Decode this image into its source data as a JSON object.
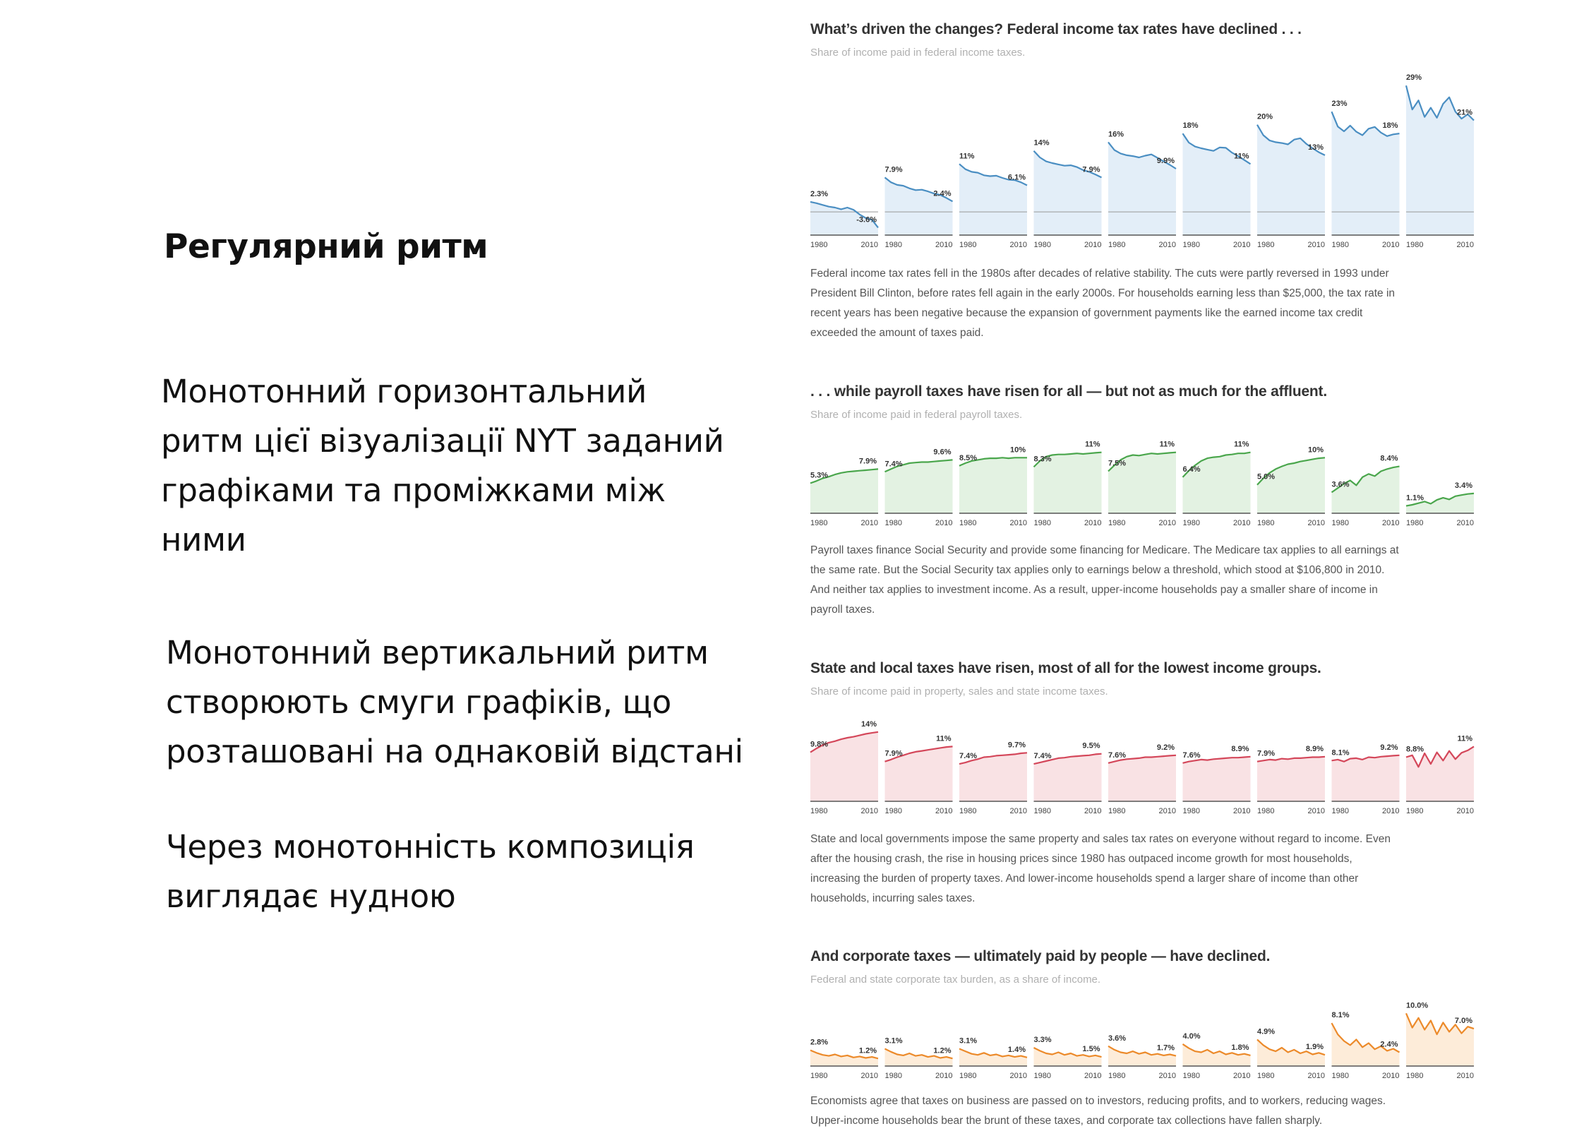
{
  "slide": {
    "heading": "Регулярний ритм",
    "paragraph1": [
      "Монотонний горизонтальний",
      "ритм цієї візуалізації NYT заданий",
      "графіками та проміжками між",
      "ними"
    ],
    "paragraph2": [
      "Монотонний вертикальний ритм",
      "створюють смуги графіків, що",
      "розташовані на однаковій відстані"
    ],
    "paragraph3": [
      "Через монотонність композиція",
      "виглядає нудною"
    ]
  },
  "chart_data": [
    {
      "type": "area",
      "title": "What’s driven the changes? Federal income tax rates have declined . . .",
      "subtitle": "Share of income paid in federal income taxes.",
      "x_tick_labels": [
        "1980",
        "2010"
      ],
      "color": "#4a8ec2",
      "fill": "#e3eef8",
      "ylim": [
        -5,
        30
      ],
      "panels": [
        {
          "start_label": "2.3%",
          "end_label": "-3.6%",
          "values": [
            2.3,
            2.0,
            1.6,
            1.2,
            1.0,
            0.6,
            1.0,
            0.5,
            -0.6,
            -1.4,
            -1.8,
            -3.6
          ]
        },
        {
          "start_label": "7.9%",
          "end_label": "2.4%",
          "values": [
            7.9,
            6.8,
            6.2,
            6.0,
            5.4,
            5.0,
            5.1,
            4.7,
            4.2,
            3.9,
            3.2,
            2.4
          ]
        },
        {
          "start_label": "11%",
          "end_label": "6.1%",
          "values": [
            11.0,
            9.8,
            9.2,
            9.0,
            8.4,
            8.2,
            8.3,
            7.8,
            7.4,
            7.3,
            6.8,
            6.1
          ]
        },
        {
          "start_label": "14%",
          "end_label": "7.9%",
          "values": [
            14.0,
            12.5,
            11.6,
            11.2,
            10.9,
            10.6,
            10.7,
            10.3,
            9.6,
            9.2,
            8.6,
            7.9
          ]
        },
        {
          "start_label": "16%",
          "end_label": "9.9%",
          "values": [
            16.0,
            14.2,
            13.4,
            13.0,
            12.8,
            12.5,
            12.9,
            13.2,
            12.4,
            11.6,
            10.8,
            9.9
          ]
        },
        {
          "start_label": "18%",
          "end_label": "11%",
          "values": [
            18.0,
            15.9,
            15.0,
            14.6,
            14.3,
            14.0,
            14.8,
            14.7,
            13.6,
            12.8,
            11.9,
            11.0
          ]
        },
        {
          "start_label": "20%",
          "end_label": "13%",
          "values": [
            20.0,
            17.6,
            16.4,
            16.0,
            15.8,
            15.5,
            16.6,
            16.9,
            15.6,
            14.6,
            13.7,
            13.0
          ]
        },
        {
          "start_label": "23%",
          "end_label": "18%",
          "values": [
            23.0,
            19.6,
            18.5,
            19.8,
            18.4,
            17.6,
            19.1,
            19.5,
            18.2,
            17.4,
            17.8,
            18.0
          ]
        },
        {
          "start_label": "29%",
          "end_label": "21%",
          "values": [
            29.0,
            23.5,
            25.6,
            21.8,
            23.9,
            21.6,
            24.8,
            26.3,
            23.0,
            21.4,
            22.4,
            21.0
          ]
        }
      ],
      "description": [
        "Federal income tax rates fell in the 1980s after decades of relative stability. The cuts were partly reversed in 1993 under",
        "President Bill Clinton, before rates fell again in the early 2000s. For households earning less than $25,000, the tax rate in",
        "recent years has been negative because the expansion of government payments like the earned income tax credit",
        "exceeded the amount of taxes paid."
      ]
    },
    {
      "type": "area",
      "title": ". . . while payroll taxes have risen for all — but not as much for the affluent.",
      "subtitle": "Share of income paid in federal payroll taxes.",
      "x_tick_labels": [
        "1980",
        "2010"
      ],
      "color": "#4aa64c",
      "fill": "#e3f2e2",
      "ylim": [
        0,
        12
      ],
      "panels": [
        {
          "start_label": "5.3%",
          "end_label": "7.9%",
          "values": [
            5.3,
            5.7,
            6.2,
            6.5,
            6.9,
            7.2,
            7.4,
            7.5,
            7.6,
            7.7,
            7.8,
            7.9
          ]
        },
        {
          "start_label": "7.4%",
          "end_label": "9.6%",
          "values": [
            7.4,
            7.9,
            8.4,
            8.7,
            9.0,
            9.1,
            9.2,
            9.2,
            9.3,
            9.4,
            9.5,
            9.6
          ]
        },
        {
          "start_label": "8.5%",
          "end_label": "10%",
          "values": [
            8.5,
            9.0,
            9.4,
            9.6,
            9.8,
            9.9,
            9.9,
            10.0,
            9.9,
            10.0,
            10.0,
            10.0
          ]
        },
        {
          "start_label": "8.3%",
          "end_label": "11%",
          "values": [
            8.3,
            9.4,
            10.2,
            10.5,
            10.6,
            10.6,
            10.7,
            10.8,
            10.7,
            10.8,
            10.9,
            11.0
          ]
        },
        {
          "start_label": "7.5%",
          "end_label": "11%",
          "values": [
            7.5,
            8.6,
            9.6,
            10.2,
            10.5,
            10.4,
            10.6,
            10.8,
            10.7,
            10.8,
            10.9,
            11.0
          ]
        },
        {
          "start_label": "6.4%",
          "end_label": "11%",
          "values": [
            6.4,
            7.6,
            8.6,
            9.4,
            9.9,
            10.1,
            10.2,
            10.5,
            10.6,
            10.8,
            10.8,
            11.0
          ]
        },
        {
          "start_label": "5.0%",
          "end_label": "10%",
          "values": [
            5.0,
            6.2,
            7.2,
            7.9,
            8.4,
            8.8,
            9.0,
            9.3,
            9.5,
            9.7,
            9.9,
            10.0
          ]
        },
        {
          "start_label": "3.6%",
          "end_label": "8.4%",
          "values": [
            3.6,
            4.4,
            5.2,
            5.8,
            4.9,
            6.4,
            7.0,
            6.6,
            7.5,
            7.9,
            8.2,
            8.4
          ]
        },
        {
          "start_label": "1.1%",
          "end_label": "3.4%",
          "values": [
            1.1,
            1.3,
            1.6,
            1.9,
            1.5,
            2.2,
            2.6,
            2.3,
            2.9,
            3.1,
            3.3,
            3.4
          ]
        }
      ],
      "description": [
        "Payroll taxes finance Social Security and provide some financing for Medicare. The Medicare tax applies to all earnings at",
        "the same rate. But the Social Security tax applies only to earnings below a threshold, which stood at $106,800 in 2010.",
        "And neither tax applies to investment income. As a result, upper-income households pay a smaller share of income in",
        "payroll taxes."
      ]
    },
    {
      "type": "area",
      "title": "State and local taxes have risen, most of all for the lowest income groups.",
      "subtitle": "Share of income paid in property, sales and state income taxes.",
      "x_tick_labels": [
        "1980",
        "2010"
      ],
      "color": "#d4475a",
      "fill": "#f9e2e4",
      "ylim": [
        0,
        16
      ],
      "panels": [
        {
          "start_label": "9.8%",
          "end_label": "14%",
          "values": [
            9.8,
            10.6,
            11.3,
            11.8,
            12.1,
            12.5,
            12.8,
            13.0,
            13.3,
            13.6,
            13.8,
            14.0
          ]
        },
        {
          "start_label": "7.9%",
          "end_label": "11%",
          "values": [
            7.9,
            8.3,
            8.8,
            9.2,
            9.6,
            9.9,
            10.1,
            10.3,
            10.5,
            10.7,
            10.9,
            11.0
          ]
        },
        {
          "start_label": "7.4%",
          "end_label": "9.7%",
          "values": [
            7.4,
            7.7,
            8.1,
            8.4,
            8.8,
            8.9,
            9.1,
            9.2,
            9.3,
            9.4,
            9.6,
            9.7
          ]
        },
        {
          "start_label": "7.4%",
          "end_label": "9.5%",
          "values": [
            7.4,
            7.7,
            8.0,
            8.3,
            8.6,
            8.7,
            8.9,
            9.0,
            9.1,
            9.2,
            9.4,
            9.5
          ]
        },
        {
          "start_label": "7.6%",
          "end_label": "9.2%",
          "values": [
            7.6,
            7.9,
            8.2,
            8.4,
            8.5,
            8.6,
            8.8,
            8.8,
            8.9,
            9.0,
            9.1,
            9.2
          ]
        },
        {
          "start_label": "7.6%",
          "end_label": "8.9%",
          "values": [
            7.6,
            7.9,
            8.1,
            8.3,
            8.2,
            8.4,
            8.5,
            8.6,
            8.7,
            8.7,
            8.8,
            8.9
          ]
        },
        {
          "start_label": "7.9%",
          "end_label": "8.9%",
          "values": [
            7.9,
            8.1,
            8.3,
            8.2,
            8.5,
            8.4,
            8.6,
            8.6,
            8.7,
            8.8,
            8.8,
            8.9
          ]
        },
        {
          "start_label": "8.1%",
          "end_label": "9.2%",
          "values": [
            8.1,
            8.3,
            7.9,
            8.5,
            8.6,
            8.3,
            8.8,
            8.7,
            8.9,
            9.0,
            9.1,
            9.2
          ]
        },
        {
          "start_label": "8.8%",
          "end_label": "11%",
          "values": [
            8.8,
            9.2,
            6.8,
            9.6,
            7.4,
            9.8,
            8.1,
            10.1,
            8.4,
            9.7,
            10.2,
            11.0
          ]
        }
      ],
      "description": [
        "State and local governments impose the same property and sales tax rates on everyone without regard to income. Even",
        "after the housing crash, the rise in housing prices since 1980 has outpaced income growth for most households,",
        "increasing the burden of property taxes. And lower-income households spend a larger share of income than other",
        "households, incurring sales taxes."
      ]
    },
    {
      "type": "area",
      "title": "And corporate taxes — ultimately paid by people — have declined.",
      "subtitle": "Federal and state corporate tax burden, as a share of income.",
      "x_tick_labels": [
        "1980",
        "2010"
      ],
      "color": "#ec8a2a",
      "fill": "#fdecd9",
      "ylim": [
        0,
        11
      ],
      "panels": [
        {
          "start_label": "2.8%",
          "end_label": "1.2%",
          "values": [
            2.8,
            2.3,
            1.9,
            1.7,
            2.0,
            1.6,
            1.8,
            1.4,
            1.6,
            1.3,
            1.5,
            1.2
          ]
        },
        {
          "start_label": "3.1%",
          "end_label": "1.2%",
          "values": [
            3.1,
            2.5,
            2.0,
            1.8,
            2.2,
            1.7,
            1.9,
            1.5,
            1.7,
            1.3,
            1.5,
            1.2
          ]
        },
        {
          "start_label": "3.1%",
          "end_label": "1.4%",
          "values": [
            3.1,
            2.6,
            2.1,
            1.9,
            2.3,
            1.8,
            2.0,
            1.6,
            1.8,
            1.5,
            1.7,
            1.4
          ]
        },
        {
          "start_label": "3.3%",
          "end_label": "1.5%",
          "values": [
            3.3,
            2.7,
            2.2,
            2.0,
            2.4,
            1.9,
            2.2,
            1.7,
            1.9,
            1.6,
            1.8,
            1.5
          ]
        },
        {
          "start_label": "3.6%",
          "end_label": "1.7%",
          "values": [
            3.6,
            2.9,
            2.4,
            2.2,
            2.6,
            2.1,
            2.4,
            1.9,
            2.1,
            1.8,
            2.0,
            1.7
          ]
        },
        {
          "start_label": "4.0%",
          "end_label": "1.8%",
          "values": [
            4.0,
            3.2,
            2.6,
            2.4,
            2.9,
            2.2,
            2.6,
            2.0,
            2.3,
            1.9,
            2.1,
            1.8
          ]
        },
        {
          "start_label": "4.9%",
          "end_label": "1.9%",
          "values": [
            4.9,
            3.8,
            3.0,
            2.6,
            3.3,
            2.4,
            2.9,
            2.2,
            2.6,
            2.0,
            2.3,
            1.9
          ]
        },
        {
          "start_label": "8.1%",
          "end_label": "2.4%",
          "values": [
            8.1,
            5.9,
            4.6,
            3.8,
            4.9,
            3.4,
            4.2,
            3.0,
            3.6,
            2.7,
            3.1,
            2.4
          ]
        },
        {
          "start_label": "10.0%",
          "end_label": "7.0%",
          "values": [
            10.0,
            7.2,
            9.1,
            6.8,
            8.6,
            5.9,
            8.2,
            6.4,
            7.8,
            6.1,
            7.4,
            7.0
          ]
        }
      ],
      "description": [
        "Economists agree that taxes on business are passed on to investors, reducing profits, and to workers, reducing wages.",
        "Upper-income households bear the brunt of these taxes, and corporate tax collections have fallen sharply."
      ]
    }
  ]
}
